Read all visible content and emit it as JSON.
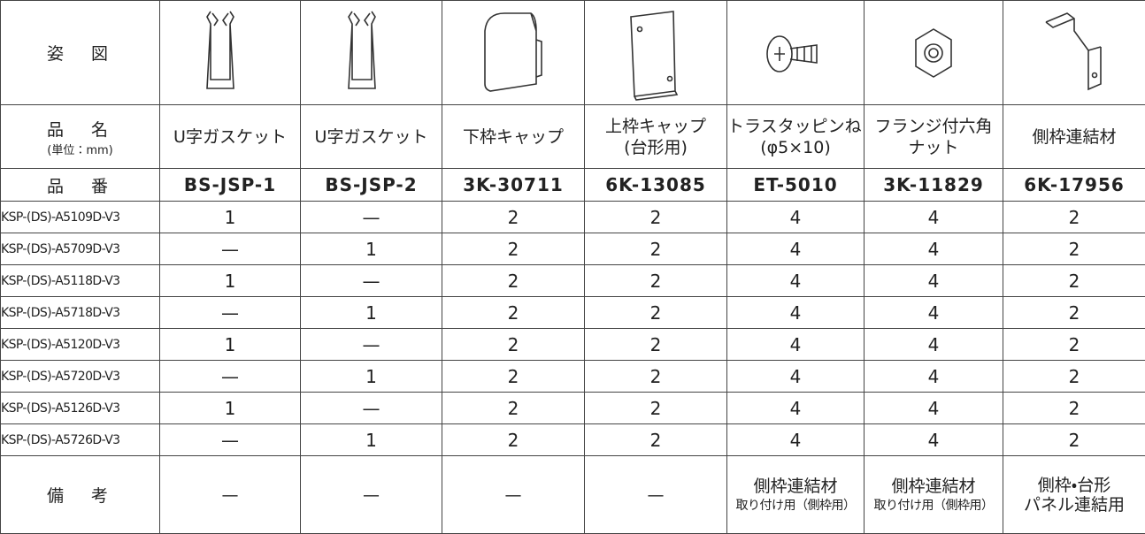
{
  "header_labels": {
    "figure": "姿　図",
    "name": "品　名",
    "unit": "(単位：mm)",
    "part_no": "品　番",
    "remarks": "備　考"
  },
  "columns": [
    {
      "name": [
        "U字ガスケット"
      ],
      "part_no": "BS-JSP-1",
      "remarks": [
        "—"
      ]
    },
    {
      "name": [
        "U字ガスケット"
      ],
      "part_no": "BS-JSP-2",
      "remarks": [
        "—"
      ]
    },
    {
      "name": [
        "下枠キャップ"
      ],
      "part_no": "3K-30711",
      "remarks": [
        "—"
      ]
    },
    {
      "name": [
        "上枠キャップ",
        "(台形用)"
      ],
      "part_no": "6K-13085",
      "remarks": [
        "—"
      ]
    },
    {
      "name": [
        "トラスタッピンねじ",
        "(φ5×10)"
      ],
      "part_no": "ET-5010",
      "remarks": [
        "側枠連結材"
      ],
      "remarks_note": "取り付け用（側枠用）"
    },
    {
      "name": [
        "フランジ付六角",
        "ナット"
      ],
      "part_no": "3K-11829",
      "remarks": [
        "側枠連結材"
      ],
      "remarks_note": "取り付け用（側枠用）"
    },
    {
      "name": [
        "側枠連結材"
      ],
      "part_no": "6K-17956",
      "remarks": [
        "側枠・台形",
        "パネル連結用"
      ]
    }
  ],
  "rows": [
    {
      "model": "KSP-(DS)-A5109D-V3",
      "quantities": [
        1,
        "—",
        2,
        2,
        4,
        4,
        2
      ]
    },
    {
      "model": "KSP-(DS)-A5709D-V3",
      "quantities": [
        "—",
        1,
        2,
        2,
        4,
        4,
        2
      ]
    },
    {
      "model": "KSP-(DS)-A5118D-V3",
      "quantities": [
        1,
        "—",
        2,
        2,
        4,
        4,
        2
      ]
    },
    {
      "model": "KSP-(DS)-A5718D-V3",
      "quantities": [
        "—",
        1,
        2,
        2,
        4,
        4,
        2
      ]
    },
    {
      "model": "KSP-(DS)-A5120D-V3",
      "quantities": [
        1,
        "—",
        2,
        2,
        4,
        4,
        2
      ]
    },
    {
      "model": "KSP-(DS)-A5720D-V3",
      "quantities": [
        "—",
        1,
        2,
        2,
        4,
        4,
        2
      ]
    },
    {
      "model": "KSP-(DS)-A5126D-V3",
      "quantities": [
        1,
        "—",
        2,
        2,
        4,
        4,
        2
      ]
    },
    {
      "model": "KSP-(DS)-A5726D-V3",
      "quantities": [
        "—",
        1,
        2,
        2,
        4,
        4,
        2
      ]
    }
  ]
}
